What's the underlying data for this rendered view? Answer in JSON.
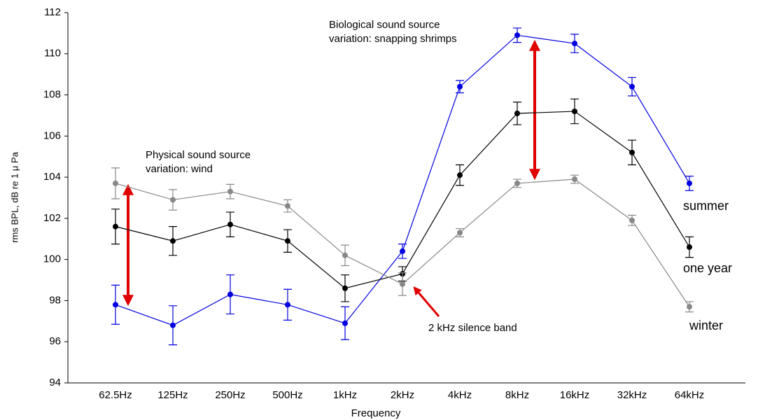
{
  "chart_data": {
    "type": "line",
    "x_label": "Frequency",
    "y_label": "rms BPL, dB re 1 μ Pa",
    "categories": [
      "62.5Hz",
      "125Hz",
      "250Hz",
      "500Hz",
      "1kHz",
      "2kHz",
      "4kHz",
      "8kHz",
      "16kHz",
      "32kHz",
      "64kHz"
    ],
    "series": [
      {
        "name": "summer",
        "color": "#0000e0",
        "values": [
          97.8,
          96.8,
          98.3,
          97.8,
          96.9,
          100.4,
          108.4,
          110.9,
          110.5,
          108.4,
          103.7
        ],
        "errors": [
          0.95,
          0.95,
          0.95,
          0.75,
          0.8,
          0.35,
          0.3,
          0.35,
          0.45,
          0.45,
          0.35
        ]
      },
      {
        "name": "one year",
        "color": "#000000",
        "values": [
          101.6,
          100.9,
          101.7,
          100.9,
          98.6,
          99.3,
          104.1,
          107.1,
          107.2,
          105.2,
          100.6
        ],
        "errors": [
          0.85,
          0.7,
          0.6,
          0.55,
          0.65,
          0.35,
          0.5,
          0.55,
          0.6,
          0.6,
          0.5
        ]
      },
      {
        "name": "winter",
        "color": "#888888",
        "values": [
          103.7,
          102.9,
          103.3,
          102.6,
          100.2,
          98.8,
          101.3,
          103.7,
          103.9,
          101.9,
          97.7
        ],
        "errors": [
          0.75,
          0.5,
          0.35,
          0.3,
          0.5,
          0.55,
          0.2,
          0.2,
          0.2,
          0.25,
          0.25
        ]
      }
    ],
    "ylim": [
      94,
      112
    ],
    "yticks": [
      94,
      96,
      98,
      100,
      102,
      104,
      106,
      108,
      110,
      112
    ],
    "annotations": [
      [
        "Physical sound source",
        "variation: wind"
      ],
      [
        "Biological sound source",
        "variation: snapping shrimps"
      ],
      [
        "2 kHz silence band"
      ]
    ]
  }
}
